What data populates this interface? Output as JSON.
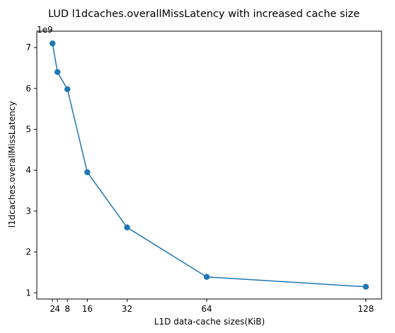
{
  "chart_data": {
    "type": "line",
    "title": "LUD l1dcaches.overallMissLatency with increased cache size",
    "xlabel": "L1D data-cache sizes(KiB)",
    "ylabel": "l1dcaches.overallMissLatency",
    "y_offset_label": "1e9",
    "x": [
      2,
      4,
      8,
      16,
      32,
      64,
      128
    ],
    "x_ticks": [
      2,
      4,
      8,
      16,
      32,
      64,
      128
    ],
    "x_tick_labels": [
      "2",
      "4",
      "8",
      "16",
      "32",
      "64",
      "128"
    ],
    "y_ticks": [
      1,
      2,
      3,
      4,
      5,
      6,
      7
    ],
    "y_tick_labels": [
      "1",
      "2",
      "3",
      "4",
      "5",
      "6",
      "7"
    ],
    "series": [
      {
        "values": [
          7.1,
          6.4,
          5.98,
          3.95,
          2.6,
          1.39,
          1.15
        ],
        "color": "#1f77b4",
        "marker": "circle"
      }
    ],
    "xlim": [
      -4.3,
      134.3
    ],
    "ylim": [
      0.85,
      7.4
    ],
    "grid": false
  }
}
